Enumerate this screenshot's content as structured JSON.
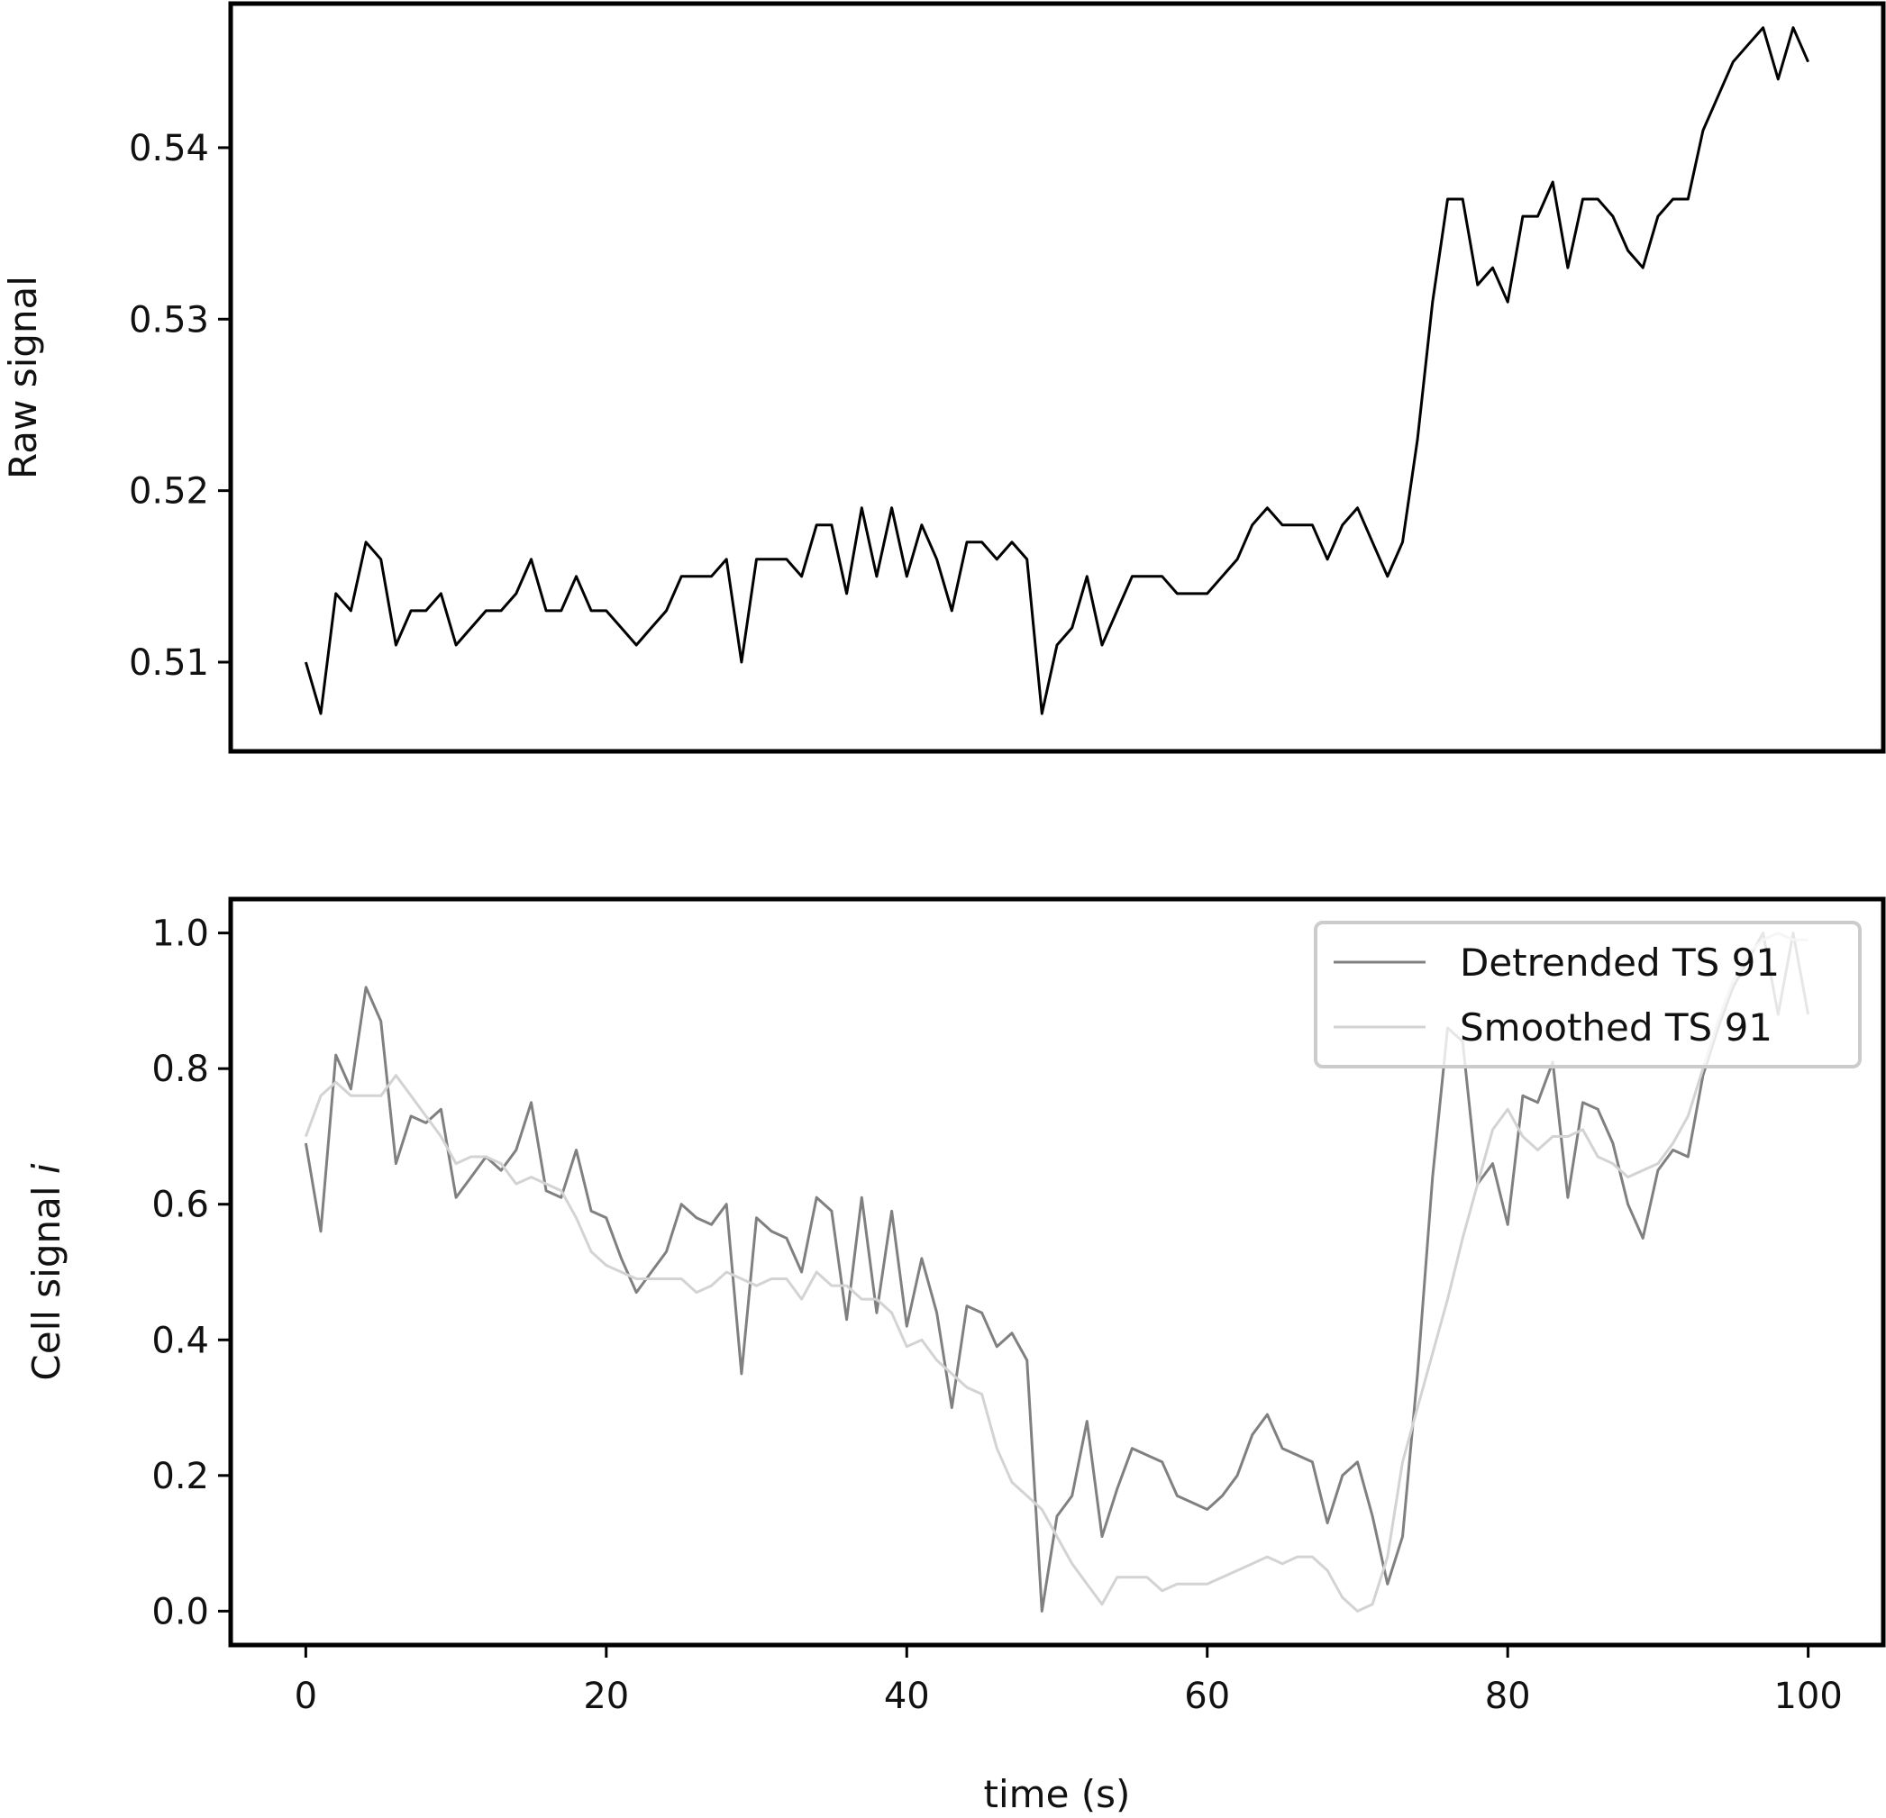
{
  "chart_data": [
    {
      "type": "line",
      "title": "",
      "xlabel": "",
      "ylabel": "Raw signal",
      "xlim": [
        -5,
        105
      ],
      "ylim": [
        0.5048,
        0.5484
      ],
      "x_ticks": [],
      "y_ticks": [
        {
          "value": 0.51,
          "label": "0.51"
        },
        {
          "value": 0.52,
          "label": "0.52"
        },
        {
          "value": 0.53,
          "label": "0.53"
        },
        {
          "value": 0.54,
          "label": "0.54"
        }
      ],
      "grid": false,
      "x": [
        0,
        1,
        2,
        3,
        4,
        5,
        6,
        7,
        8,
        9,
        10,
        11,
        12,
        13,
        14,
        15,
        16,
        17,
        18,
        19,
        20,
        21,
        22,
        23,
        24,
        25,
        26,
        27,
        28,
        29,
        30,
        31,
        32,
        33,
        34,
        35,
        36,
        37,
        38,
        39,
        40,
        41,
        42,
        43,
        44,
        45,
        46,
        47,
        48,
        49,
        50,
        51,
        52,
        53,
        54,
        55,
        56,
        57,
        58,
        59,
        60,
        61,
        62,
        63,
        64,
        65,
        66,
        67,
        68,
        69,
        70,
        71,
        72,
        73,
        74,
        75,
        76,
        77,
        78,
        79,
        80,
        81,
        82,
        83,
        84,
        85,
        86,
        87,
        88,
        89,
        90,
        91,
        92,
        93,
        94,
        95,
        96,
        97,
        98,
        99,
        100
      ],
      "series": [
        {
          "color": "#000000",
          "values": [
            0.51,
            0.507,
            0.514,
            0.513,
            0.517,
            0.516,
            0.511,
            0.513,
            0.513,
            0.514,
            0.511,
            0.512,
            0.513,
            0.513,
            0.514,
            0.516,
            0.513,
            0.513,
            0.515,
            0.513,
            0.513,
            0.512,
            0.511,
            0.512,
            0.513,
            0.515,
            0.515,
            0.515,
            0.516,
            0.51,
            0.516,
            0.516,
            0.516,
            0.515,
            0.518,
            0.518,
            0.514,
            0.519,
            0.515,
            0.519,
            0.515,
            0.518,
            0.516,
            0.513,
            0.517,
            0.517,
            0.516,
            0.517,
            0.516,
            0.507,
            0.511,
            0.512,
            0.515,
            0.511,
            0.513,
            0.515,
            0.515,
            0.515,
            0.514,
            0.514,
            0.514,
            0.515,
            0.516,
            0.518,
            0.519,
            0.518,
            0.518,
            0.518,
            0.516,
            0.518,
            0.519,
            0.517,
            0.515,
            0.517,
            0.523,
            0.531,
            0.537,
            0.537,
            0.532,
            0.533,
            0.531,
            0.536,
            0.536,
            0.538,
            0.533,
            0.537,
            0.537,
            0.536,
            0.534,
            0.533,
            0.536,
            0.537,
            0.537,
            0.541,
            0.543,
            0.545,
            0.546,
            0.547,
            0.544,
            0.547,
            0.545
          ]
        }
      ]
    },
    {
      "type": "line",
      "title": "",
      "xlabel": "time (s)",
      "ylabel": "Cell signal ",
      "ylabel_italic": "i",
      "xlim": [
        -5,
        105
      ],
      "ylim": [
        -0.05,
        1.05
      ],
      "x_ticks": [
        {
          "value": 0,
          "label": "0"
        },
        {
          "value": 20,
          "label": "20"
        },
        {
          "value": 40,
          "label": "40"
        },
        {
          "value": 60,
          "label": "60"
        },
        {
          "value": 80,
          "label": "80"
        },
        {
          "value": 100,
          "label": "100"
        }
      ],
      "y_ticks": [
        {
          "value": 0.0,
          "label": "0.0"
        },
        {
          "value": 0.2,
          "label": "0.2"
        },
        {
          "value": 0.4,
          "label": "0.4"
        },
        {
          "value": 0.6,
          "label": "0.6"
        },
        {
          "value": 0.8,
          "label": "0.8"
        },
        {
          "value": 1.0,
          "label": "1.0"
        }
      ],
      "grid": false,
      "legend_position": "top-right",
      "x": [
        0,
        1,
        2,
        3,
        4,
        5,
        6,
        7,
        8,
        9,
        10,
        11,
        12,
        13,
        14,
        15,
        16,
        17,
        18,
        19,
        20,
        21,
        22,
        23,
        24,
        25,
        26,
        27,
        28,
        29,
        30,
        31,
        32,
        33,
        34,
        35,
        36,
        37,
        38,
        39,
        40,
        41,
        42,
        43,
        44,
        45,
        46,
        47,
        48,
        49,
        50,
        51,
        52,
        53,
        54,
        55,
        56,
        57,
        58,
        59,
        60,
        61,
        62,
        63,
        64,
        65,
        66,
        67,
        68,
        69,
        70,
        71,
        72,
        73,
        74,
        75,
        76,
        77,
        78,
        79,
        80,
        81,
        82,
        83,
        84,
        85,
        86,
        87,
        88,
        89,
        90,
        91,
        92,
        93,
        94,
        95,
        96,
        97,
        98,
        99,
        100
      ],
      "series": [
        {
          "name": "Detrended TS 91",
          "color": "#808080",
          "values": [
            0.69,
            0.56,
            0.82,
            0.77,
            0.92,
            0.87,
            0.66,
            0.73,
            0.72,
            0.74,
            0.61,
            0.64,
            0.67,
            0.65,
            0.68,
            0.75,
            0.62,
            0.61,
            0.68,
            0.59,
            0.58,
            0.52,
            0.47,
            0.5,
            0.53,
            0.6,
            0.58,
            0.57,
            0.6,
            0.35,
            0.58,
            0.56,
            0.55,
            0.5,
            0.61,
            0.59,
            0.43,
            0.61,
            0.44,
            0.59,
            0.42,
            0.52,
            0.44,
            0.3,
            0.45,
            0.44,
            0.39,
            0.41,
            0.37,
            0.0,
            0.14,
            0.17,
            0.28,
            0.11,
            0.18,
            0.24,
            0.23,
            0.22,
            0.17,
            0.16,
            0.15,
            0.17,
            0.2,
            0.26,
            0.29,
            0.24,
            0.23,
            0.22,
            0.13,
            0.2,
            0.22,
            0.14,
            0.04,
            0.11,
            0.35,
            0.64,
            0.86,
            0.84,
            0.63,
            0.66,
            0.57,
            0.76,
            0.75,
            0.81,
            0.61,
            0.75,
            0.74,
            0.69,
            0.6,
            0.55,
            0.65,
            0.68,
            0.67,
            0.79,
            0.86,
            0.92,
            0.96,
            1.0,
            0.88,
            1.0,
            0.88
          ]
        },
        {
          "name": "Smoothed TS 91",
          "color": "#d3d3d3",
          "values": [
            0.7,
            0.76,
            0.78,
            0.76,
            0.76,
            0.76,
            0.79,
            0.76,
            0.73,
            0.7,
            0.66,
            0.67,
            0.67,
            0.66,
            0.63,
            0.64,
            0.63,
            0.62,
            0.58,
            0.53,
            0.51,
            0.5,
            0.49,
            0.49,
            0.49,
            0.49,
            0.47,
            0.48,
            0.5,
            0.49,
            0.48,
            0.49,
            0.49,
            0.46,
            0.5,
            0.48,
            0.48,
            0.46,
            0.46,
            0.44,
            0.39,
            0.4,
            0.37,
            0.35,
            0.33,
            0.32,
            0.24,
            0.19,
            0.17,
            0.15,
            0.11,
            0.07,
            0.04,
            0.01,
            0.05,
            0.05,
            0.05,
            0.03,
            0.04,
            0.04,
            0.04,
            0.05,
            0.06,
            0.07,
            0.08,
            0.07,
            0.08,
            0.08,
            0.06,
            0.02,
            0.0,
            0.01,
            0.08,
            0.22,
            0.3,
            0.38,
            0.46,
            0.55,
            0.63,
            0.71,
            0.74,
            0.7,
            0.68,
            0.7,
            0.7,
            0.71,
            0.67,
            0.66,
            0.64,
            0.65,
            0.66,
            0.69,
            0.73,
            0.8,
            0.87,
            0.93,
            0.97,
            0.99,
            1.0,
            0.99,
            0.99
          ]
        }
      ]
    }
  ]
}
